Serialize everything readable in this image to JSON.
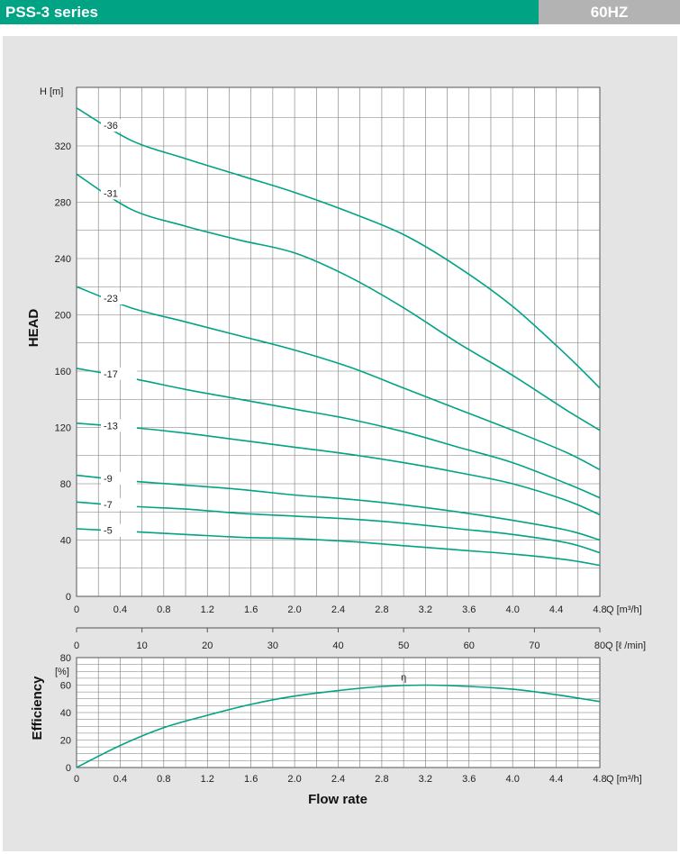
{
  "header": {
    "title": "PSS-3 series",
    "frequency": "60HZ"
  },
  "chart_data": [
    {
      "type": "line",
      "ylabel": "HEAD",
      "yunit": "H [m]",
      "xunit": "Q [m³/h]",
      "xlim": [
        0,
        4.8
      ],
      "ylim": [
        0,
        345
      ],
      "xticks": [
        "0",
        "0.4",
        "0.8",
        "1.2",
        "1.6",
        "2.0",
        "2.4",
        "2.8",
        "3.2",
        "3.6",
        "4.0",
        "4.4",
        "4.8"
      ],
      "yticks": [
        "0",
        "40",
        "80",
        "120",
        "160",
        "200",
        "240",
        "280",
        "320"
      ],
      "grid": true,
      "line_color": "#00a383",
      "secondary_xaxis": {
        "unit": "Q [ℓ /min]",
        "xlim": [
          0,
          80
        ],
        "ticks": [
          "0",
          "10",
          "20",
          "30",
          "40",
          "50",
          "60",
          "70",
          "80"
        ]
      },
      "series": [
        {
          "name": "-36",
          "x": [
            0,
            0.5,
            1.0,
            1.5,
            2.0,
            2.5,
            3.0,
            3.5,
            4.0,
            4.5,
            4.8
          ],
          "y": [
            347,
            324,
            311,
            299,
            287,
            273,
            257,
            234,
            206,
            171,
            148
          ]
        },
        {
          "name": "-31",
          "x": [
            0,
            0.5,
            1.0,
            1.5,
            2.0,
            2.5,
            3.0,
            3.5,
            4.0,
            4.5,
            4.8
          ],
          "y": [
            300,
            275,
            263,
            253,
            244,
            227,
            205,
            180,
            157,
            132,
            118
          ]
        },
        {
          "name": "-23",
          "x": [
            0,
            0.5,
            1.0,
            1.5,
            2.0,
            2.5,
            3.0,
            3.5,
            4.0,
            4.5,
            4.8
          ],
          "y": [
            220,
            205,
            195,
            185,
            175,
            163,
            148,
            133,
            118,
            102,
            90
          ]
        },
        {
          "name": "-17",
          "x": [
            0,
            0.5,
            1.0,
            1.5,
            2.0,
            2.5,
            3.0,
            3.5,
            4.0,
            4.5,
            4.8
          ],
          "y": [
            162,
            155,
            147,
            140,
            133,
            126,
            117,
            106,
            95,
            80,
            70
          ]
        },
        {
          "name": "-13",
          "x": [
            0,
            0.5,
            1.0,
            1.5,
            2.0,
            2.5,
            3.0,
            3.5,
            4.0,
            4.5,
            4.8
          ],
          "y": [
            123,
            120,
            116,
            111,
            106,
            101,
            95,
            88,
            80,
            68,
            58
          ]
        },
        {
          "name": "-9",
          "x": [
            0,
            0.5,
            1.0,
            1.5,
            2.0,
            2.5,
            3.0,
            3.5,
            4.0,
            4.5,
            4.8
          ],
          "y": [
            86,
            82,
            79,
            76,
            72,
            69,
            65,
            60,
            54,
            47,
            40
          ]
        },
        {
          "name": "-7",
          "x": [
            0,
            0.5,
            1.0,
            1.5,
            2.0,
            2.5,
            3.0,
            3.5,
            4.0,
            4.5,
            4.8
          ],
          "y": [
            67,
            64,
            62,
            59,
            57,
            55,
            52,
            48,
            44,
            38,
            31
          ]
        },
        {
          "name": "-5",
          "x": [
            0,
            0.5,
            1.0,
            1.5,
            2.0,
            2.5,
            3.0,
            3.5,
            4.0,
            4.5,
            4.8
          ],
          "y": [
            48,
            46,
            44,
            42,
            41,
            39,
            36,
            33,
            30,
            26,
            22
          ]
        }
      ]
    },
    {
      "type": "line",
      "ylabel": "Efficiency",
      "yunit": "[%]",
      "xlabel": "Flow rate",
      "xunit": "Q [m³/h]",
      "xlim": [
        0,
        4.8
      ],
      "ylim": [
        0,
        80
      ],
      "xticks": [
        "0",
        "0.4",
        "0.8",
        "1.2",
        "1.6",
        "2.0",
        "2.4",
        "2.8",
        "3.2",
        "3.6",
        "4.0",
        "4.4",
        "4.8"
      ],
      "yticks": [
        "0",
        "20",
        "40",
        "60",
        "80"
      ],
      "grid": true,
      "line_color": "#00a383",
      "series": [
        {
          "name": "η",
          "x": [
            0,
            0.4,
            0.8,
            1.2,
            1.6,
            2.0,
            2.4,
            2.8,
            3.2,
            3.6,
            4.0,
            4.4,
            4.8
          ],
          "y": [
            0,
            16,
            29,
            38,
            46,
            52,
            56,
            59,
            60,
            59,
            57,
            53,
            48
          ]
        }
      ]
    }
  ]
}
